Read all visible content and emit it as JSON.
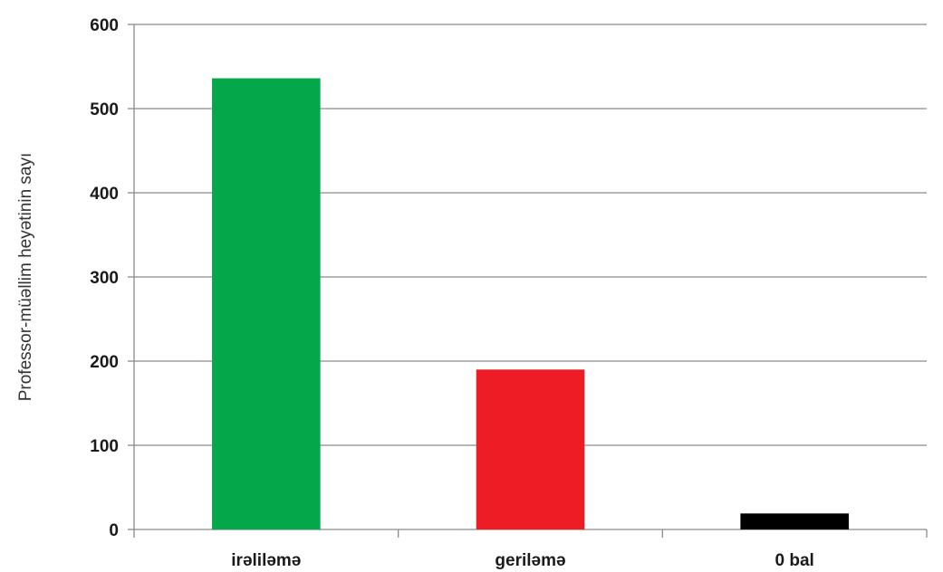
{
  "chart_data": {
    "type": "bar",
    "title": "",
    "xlabel": "",
    "ylabel": "Professor-müəllim heyətinin sayı",
    "categories": [
      "irəliləmə",
      "geriləmə",
      "0 bal"
    ],
    "values": [
      536,
      190,
      19
    ],
    "colors": [
      "#04a84a",
      "#ee1c25",
      "#000000"
    ],
    "ylim": [
      0,
      600
    ],
    "yticks": [
      0,
      100,
      200,
      300,
      400,
      500,
      600
    ],
    "grid": true,
    "legend": "none"
  }
}
